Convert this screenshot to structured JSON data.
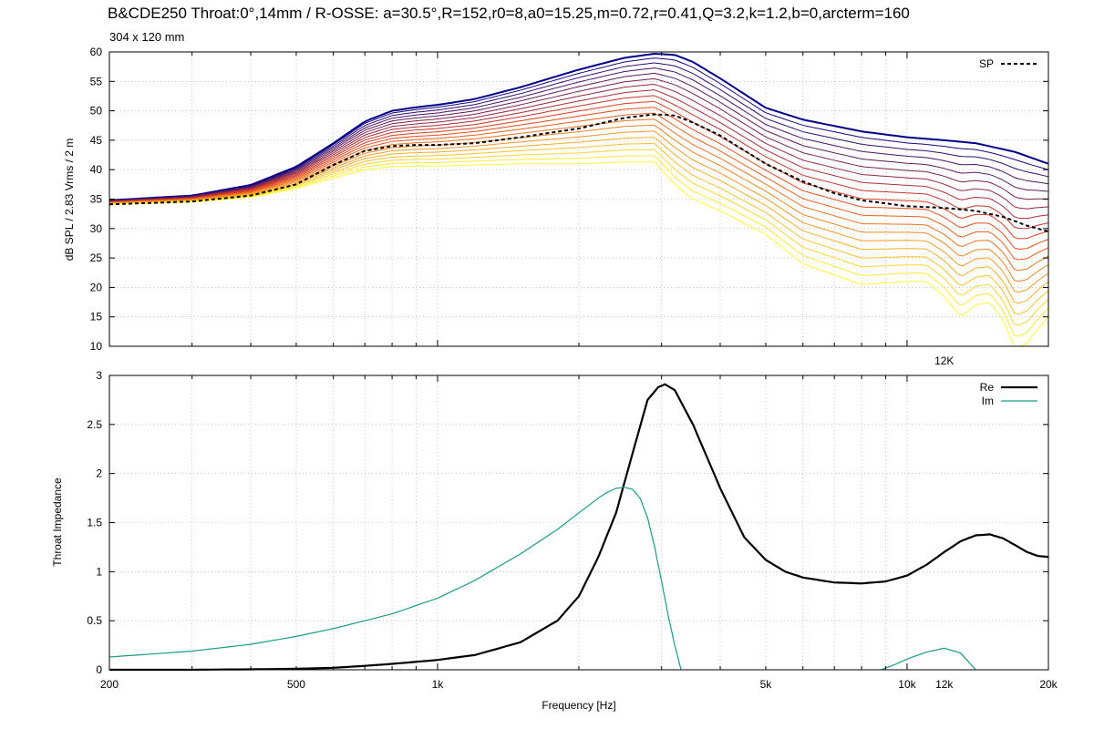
{
  "title": "B&CDE250 Throat:0°,14mm / R-OSSE: a=30.5°,R=152,r0=8,a0=15.25,m=0.72,r=0.41,Q=3.2,k=1.2,b=0,arcterm=160",
  "subtitle": "304 x 120 mm",
  "colors": {
    "re": "#000000",
    "im": "#1a9c84",
    "sp": "#000000",
    "family_start": "#00008b",
    "family_mid": "#e8401a",
    "family_end": "#ffff30"
  },
  "chart_data": [
    {
      "type": "line",
      "ylabel": "dB SPL / 2.83 Vrms / 2 m",
      "xlabel": "",
      "xscale": "log",
      "xlim": [
        200,
        20000
      ],
      "ylim": [
        10,
        60
      ],
      "yticks": [
        10,
        15,
        20,
        25,
        30,
        35,
        40,
        45,
        50,
        55,
        60
      ],
      "xtick_labels": [
        {
          "x": 12000,
          "label": "12K"
        }
      ],
      "grid": true,
      "legend_position": "top-right",
      "legend": [
        {
          "name": "SP",
          "style": "dashed"
        }
      ],
      "family": {
        "description": "polar responses",
        "count": 20,
        "color_order": "purple (top) to yellow (bottom)",
        "top": {
          "x": [
            200,
            300,
            400,
            500,
            600,
            700,
            800,
            900,
            1000,
            1200,
            1500,
            2000,
            2500,
            2900,
            3200,
            3500,
            4000,
            5000,
            6000,
            8000,
            10000,
            12000,
            14000,
            17000,
            20000
          ],
          "y": [
            34.8,
            35.6,
            37.4,
            40.5,
            44.5,
            48.2,
            50.0,
            50.6,
            51.0,
            52.0,
            54.0,
            57.0,
            59.0,
            59.7,
            59.5,
            58.3,
            55.5,
            50.5,
            48.5,
            46.5,
            45.5,
            45.0,
            44.5,
            43.0,
            41.0
          ]
        },
        "bottom": {
          "x": [
            200,
            300,
            400,
            500,
            600,
            700,
            800,
            900,
            1000,
            1200,
            1500,
            2000,
            2500,
            2900,
            3200,
            3500,
            4000,
            5000,
            6000,
            8000,
            10000,
            11000,
            12000,
            13000,
            14000,
            15000,
            16000,
            17000,
            18000,
            19000,
            20000
          ],
          "y": [
            34.1,
            34.5,
            35.3,
            36.8,
            38.6,
            40.0,
            40.5,
            40.6,
            40.6,
            40.8,
            41.0,
            41.0,
            41.3,
            41.3,
            37.5,
            35.0,
            33.0,
            29.0,
            24.0,
            20.5,
            21.0,
            21.0,
            18.5,
            15.0,
            17.0,
            17.5,
            14.5,
            9.5,
            10.5,
            13.0,
            15.0
          ]
        }
      },
      "series": [
        {
          "name": "SP",
          "style": "dashed",
          "x": [
            200,
            300,
            400,
            500,
            600,
            700,
            800,
            900,
            1000,
            1200,
            1500,
            2000,
            2500,
            2900,
            3200,
            3500,
            4000,
            5000,
            6000,
            7000,
            8000,
            10000,
            12000,
            14000,
            16000,
            18000,
            20000
          ],
          "y": [
            34.1,
            34.6,
            35.6,
            37.5,
            40.8,
            43.2,
            44.0,
            44.2,
            44.2,
            44.5,
            45.5,
            47.0,
            48.8,
            49.4,
            49.2,
            48.0,
            45.8,
            41.0,
            38.0,
            36.0,
            34.8,
            33.8,
            33.5,
            33.0,
            32.0,
            30.5,
            29.5
          ]
        }
      ]
    },
    {
      "type": "line",
      "ylabel": "Throat Impedance",
      "xlabel": "Frequency [Hz]",
      "xscale": "log",
      "xlim": [
        200,
        20000
      ],
      "ylim": [
        0,
        3
      ],
      "yticks": [
        0,
        0.5,
        1,
        1.5,
        2,
        2.5,
        3
      ],
      "ytick_labels": [
        "0",
        "0.5",
        "1",
        "1.5",
        "2",
        "2.5",
        "3"
      ],
      "xtick_labels": [
        {
          "x": 200,
          "label": "200"
        },
        {
          "x": 500,
          "label": "500"
        },
        {
          "x": 1000,
          "label": "1k"
        },
        {
          "x": 5000,
          "label": "5k"
        },
        {
          "x": 10000,
          "label": "10k"
        },
        {
          "x": 12000,
          "label": "12k"
        },
        {
          "x": 20000,
          "label": "20k"
        }
      ],
      "grid": true,
      "legend_position": "top-right",
      "series": [
        {
          "name": "Re",
          "x": [
            200,
            300,
            400,
            500,
            600,
            700,
            800,
            1000,
            1200,
            1500,
            1800,
            2000,
            2200,
            2400,
            2600,
            2800,
            2950,
            3050,
            3200,
            3500,
            4000,
            4500,
            5000,
            5500,
            6000,
            7000,
            8000,
            9000,
            10000,
            11000,
            12000,
            13000,
            14000,
            15000,
            16000,
            17000,
            18000,
            19000,
            20000
          ],
          "y": [
            0.0,
            0.0,
            0.005,
            0.01,
            0.02,
            0.04,
            0.06,
            0.1,
            0.15,
            0.28,
            0.5,
            0.75,
            1.15,
            1.6,
            2.2,
            2.75,
            2.88,
            2.91,
            2.85,
            2.5,
            1.85,
            1.35,
            1.12,
            1.0,
            0.94,
            0.89,
            0.88,
            0.9,
            0.96,
            1.07,
            1.2,
            1.31,
            1.37,
            1.38,
            1.34,
            1.27,
            1.2,
            1.16,
            1.15
          ]
        },
        {
          "name": "Im",
          "x": [
            200,
            300,
            400,
            500,
            600,
            700,
            800,
            1000,
            1200,
            1500,
            1800,
            2000,
            2200,
            2300,
            2400,
            2500,
            2600,
            2700,
            2800,
            2900,
            3000,
            3100,
            3200,
            3300
          ],
          "y": [
            0.13,
            0.19,
            0.26,
            0.34,
            0.42,
            0.5,
            0.57,
            0.73,
            0.91,
            1.18,
            1.43,
            1.6,
            1.75,
            1.81,
            1.85,
            1.86,
            1.84,
            1.75,
            1.55,
            1.25,
            0.9,
            0.55,
            0.25,
            0.0
          ]
        },
        {
          "name": "Im",
          "show_in_legend": false,
          "x": [
            8800,
            9500,
            10000,
            11000,
            12000,
            13000,
            14000
          ],
          "y": [
            0.0,
            0.06,
            0.11,
            0.18,
            0.22,
            0.17,
            0.0
          ]
        }
      ]
    }
  ]
}
